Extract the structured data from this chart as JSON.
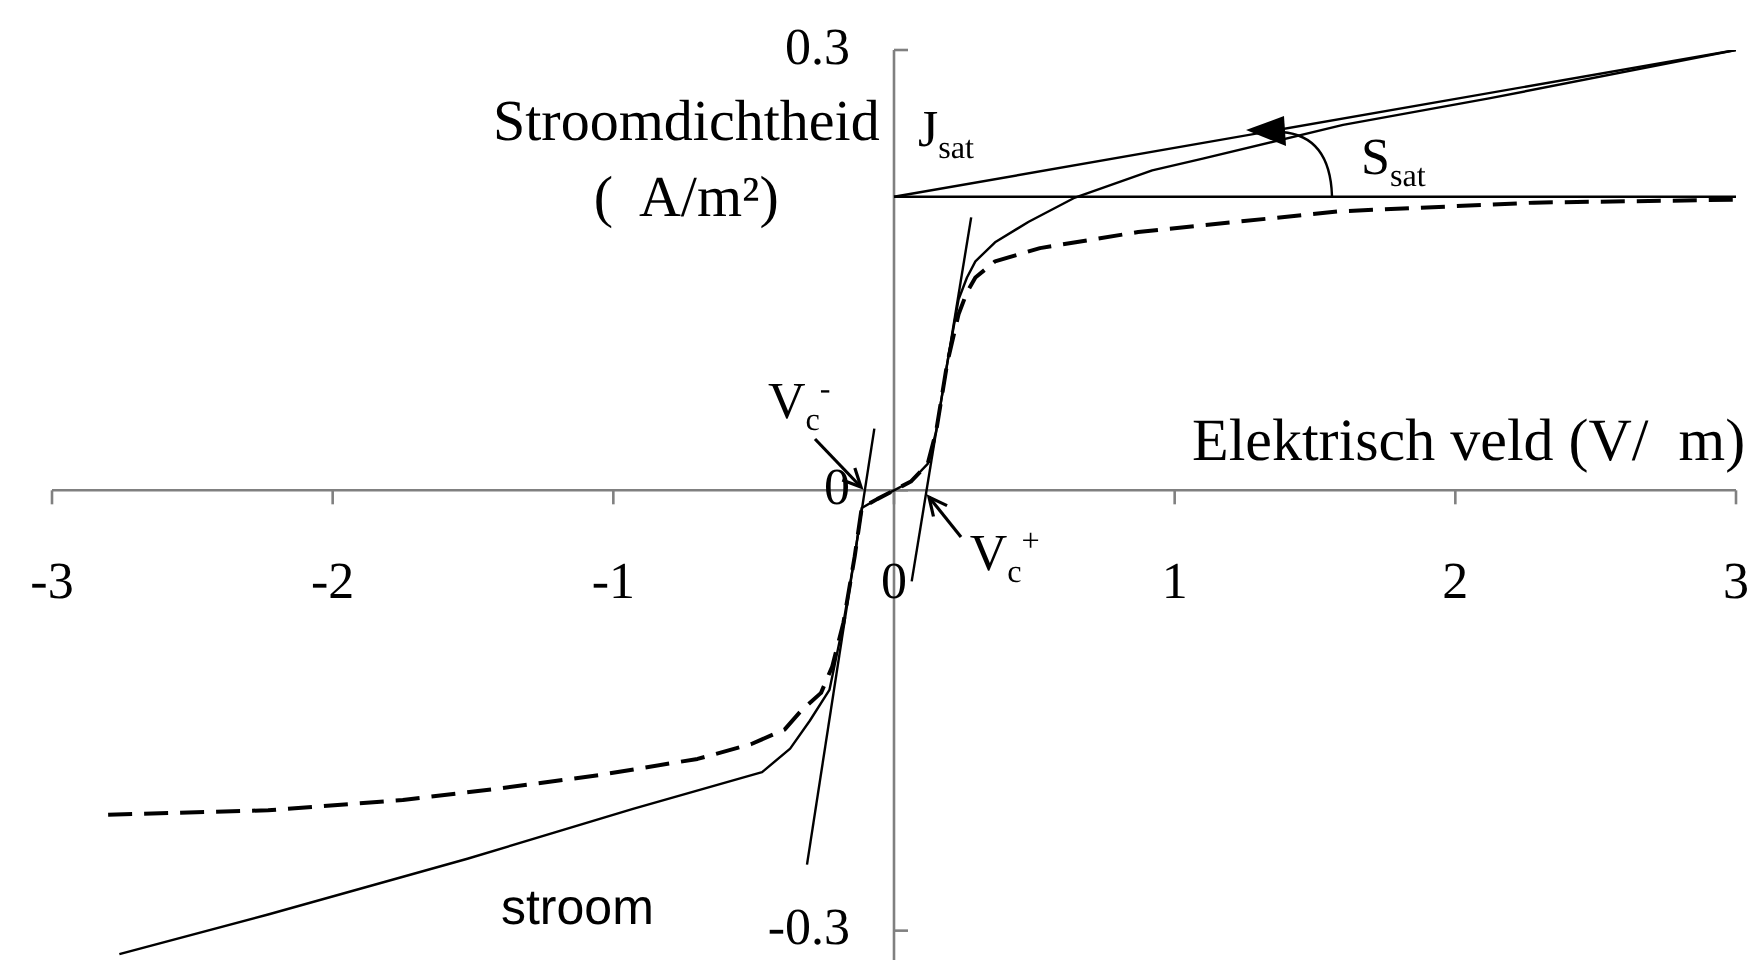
{
  "chart_data": {
    "type": "line",
    "xlabel": "Elektrisch veld (V/  m)",
    "ylabel": "Stroomdichtheid\n(  A/m²)",
    "xlim": [
      -3,
      3
    ],
    "xticks": [
      -3,
      -2,
      -1,
      0,
      1,
      2,
      3
    ],
    "ylim": [
      -0.32,
      0.3
    ],
    "yticks": [
      -0.3,
      0,
      0.3
    ],
    "series": [
      {
        "name": "stroom",
        "color": "#000000",
        "x": [
          -2.76,
          -2.23,
          -1.52,
          -0.93,
          -0.47,
          -0.37,
          -0.3,
          -0.23,
          -0.18,
          -0.14,
          -0.115,
          -0.06,
          0,
          0.06,
          0.12,
          0.15,
          0.19,
          0.23,
          0.26,
          0.29,
          0.36,
          0.48,
          0.64,
          0.92,
          1.1,
          1.6,
          2.12,
          3
        ],
        "values": [
          -0.316,
          -0.289,
          -0.251,
          -0.217,
          -0.192,
          -0.176,
          -0.157,
          -0.136,
          -0.09,
          -0.045,
          -0.012,
          -0.006,
          0,
          0.006,
          0.018,
          0.04,
          0.087,
          0.13,
          0.145,
          0.156,
          0.169,
          0.183,
          0.199,
          0.218,
          0.226,
          0.249,
          0.267,
          0.3
        ]
      },
      {
        "color": "#000000",
        "line_style": "dashed",
        "x": [
          -2.8,
          -2.23,
          -1.75,
          -1.4,
          -1.05,
          -0.7,
          -0.51,
          -0.39,
          -0.33,
          -0.26,
          -0.22,
          -0.18,
          -0.14,
          -0.115,
          -0.06,
          0,
          0.06,
          0.12,
          0.15,
          0.19,
          0.23,
          0.26,
          0.29,
          0.36,
          0.52,
          0.87,
          1.58,
          2.28,
          3
        ],
        "values": [
          -0.221,
          -0.218,
          -0.211,
          -0.203,
          -0.194,
          -0.183,
          -0.173,
          -0.163,
          -0.15,
          -0.138,
          -0.12,
          -0.09,
          -0.045,
          -0.012,
          -0.006,
          0,
          0.006,
          0.018,
          0.04,
          0.087,
          0.12,
          0.135,
          0.145,
          0.156,
          0.165,
          0.176,
          0.19,
          0.196,
          0.198
        ]
      },
      {
        "color": "#000000",
        "x": [
          -0.31,
          -0.07
        ],
        "values": [
          -0.255,
          0.042
        ]
      },
      {
        "color": "#000000",
        "x": [
          0.063,
          0.275
        ],
        "values": [
          -0.062,
          0.186
        ]
      },
      {
        "color": "#000000",
        "x": [
          0,
          3
        ],
        "values": [
          0.2,
          0.2
        ]
      },
      {
        "color": "#000000",
        "x": [
          0,
          3
        ],
        "values": [
          0.2,
          0.3
        ]
      }
    ],
    "annotations": [
      {
        "text": "J$_{sat}$",
        "x": 0,
        "y": 0.2
      },
      {
        "text": "S$_{sat}$",
        "x": 1.55,
        "y": 0.2
      },
      {
        "text": "V$_{c}$$^{-}$",
        "x": -0.1,
        "y": 0
      },
      {
        "text": "V$_{c}$$^{+}$",
        "x": 0.12,
        "y": 0
      }
    ]
  }
}
